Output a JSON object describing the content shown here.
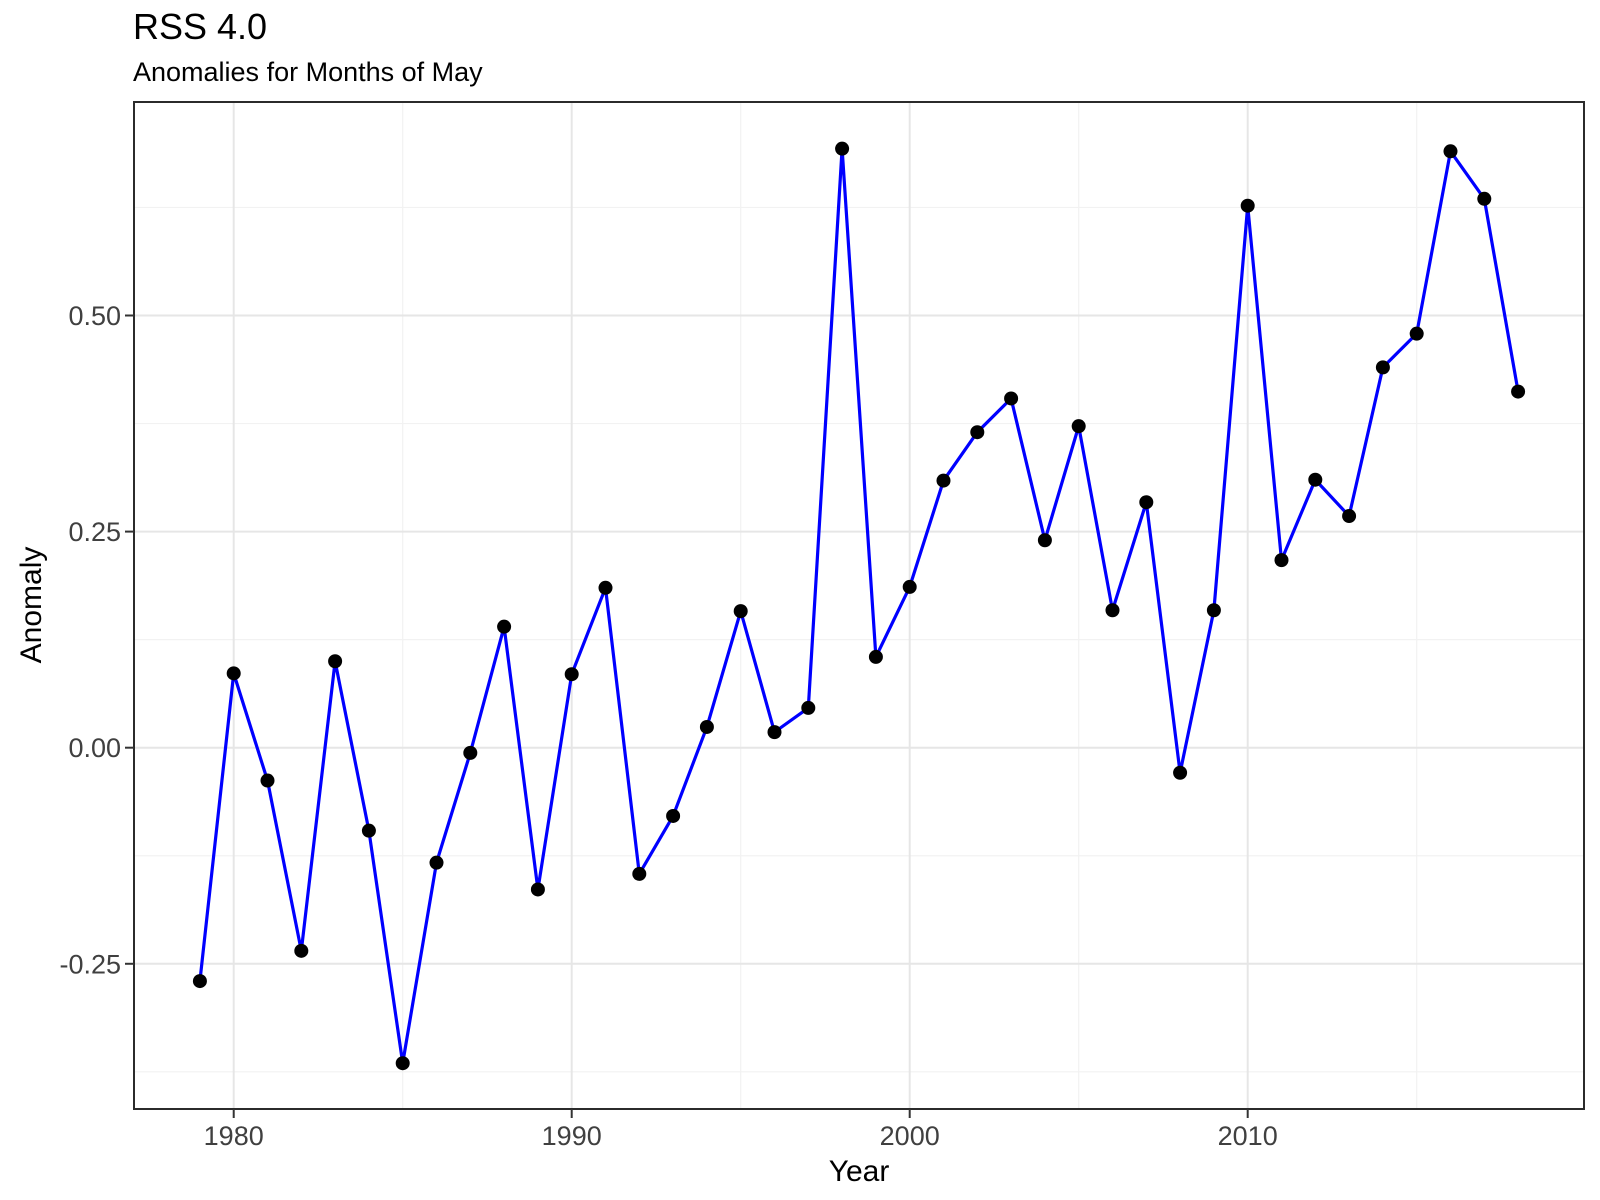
{
  "chart_data": {
    "type": "line",
    "title": "RSS 4.0",
    "subtitle": "Anomalies for Months of May",
    "xlabel": "Year",
    "ylabel": "Anomaly",
    "x": [
      1979,
      1980,
      1981,
      1982,
      1983,
      1984,
      1985,
      1986,
      1987,
      1988,
      1989,
      1990,
      1991,
      1992,
      1993,
      1994,
      1995,
      1996,
      1997,
      1998,
      1999,
      2000,
      2001,
      2002,
      2003,
      2004,
      2005,
      2006,
      2007,
      2008,
      2009,
      2010,
      2011,
      2012,
      2013,
      2014,
      2015,
      2016,
      2017,
      2018
    ],
    "y": [
      -0.27,
      0.086,
      -0.038,
      -0.235,
      0.1,
      -0.096,
      -0.365,
      -0.133,
      -0.006,
      0.14,
      -0.164,
      0.085,
      0.185,
      -0.146,
      -0.079,
      0.024,
      0.158,
      0.018,
      0.046,
      0.693,
      0.105,
      0.186,
      0.309,
      0.365,
      0.404,
      0.24,
      0.372,
      0.159,
      0.284,
      -0.029,
      0.159,
      0.627,
      0.217,
      0.31,
      0.268,
      0.44,
      0.479,
      0.69,
      0.635,
      0.412
    ],
    "xlim": [
      1977.05,
      2019.95
    ],
    "ylim": [
      -0.418,
      0.747
    ],
    "x_ticks": [
      {
        "v": 1980,
        "label": "1980"
      },
      {
        "v": 1990,
        "label": "1990"
      },
      {
        "v": 2000,
        "label": "2000"
      },
      {
        "v": 2010,
        "label": "2010"
      }
    ],
    "y_ticks": [
      {
        "v": 0.5,
        "label": "0.50"
      },
      {
        "v": 0.25,
        "label": "0.25"
      },
      {
        "v": 0.0,
        "label": "0.00"
      },
      {
        "v": -0.25,
        "label": "-0.25"
      }
    ],
    "x_minor": [
      1985,
      1995,
      2005,
      2015
    ],
    "y_minor": [
      0.625,
      0.375,
      0.125,
      -0.125,
      -0.375
    ],
    "grid": true,
    "legend": "none",
    "colors": {
      "line": "#0000FF",
      "point": "#000000",
      "grid_major": "#E6E6E6",
      "grid_minor": "#F2F2F2",
      "panel_border": "#2B2B2B",
      "tick": "#333333",
      "tick_label": "#404040",
      "text": "#000000"
    }
  }
}
